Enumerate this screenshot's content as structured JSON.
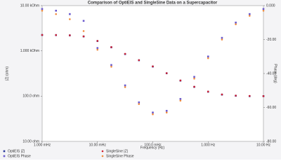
{
  "chart_data": {
    "type": "scatter",
    "title": "Comparison of OptiEIS and SingleSine Data on a Supercapacitor",
    "xlabel": "Frequency (Hz)",
    "ylabel": "|Z| (ohm)",
    "y2label": "Phase (deg)",
    "xscale": "log",
    "yscale": "log",
    "x": [
      0.001,
      0.00178,
      0.00316,
      0.00562,
      0.01,
      0.0178,
      0.0316,
      0.0562,
      0.1,
      0.178,
      0.316,
      0.562,
      1,
      1.78,
      3.16,
      5.62,
      10
    ],
    "xlim": [
      0.001,
      10
    ],
    "xticks": [
      {
        "value": 0.001,
        "label": "1.000 mHz"
      },
      {
        "value": 0.01,
        "label": "10.00 mHz"
      },
      {
        "value": 0.1,
        "label": "100.0 mHz"
      },
      {
        "value": 1,
        "label": "1.000 Hz"
      },
      {
        "value": 10,
        "label": "10.00 Hz"
      }
    ],
    "ylim": [
      10,
      10000
    ],
    "yticks": [
      {
        "value": 10000,
        "label": "10.00 kOhm"
      },
      {
        "value": 1000,
        "label": "1.000 kOhm"
      },
      {
        "value": 100,
        "label": "100.0 ohm"
      },
      {
        "value": 10,
        "label": "10.00 ohm"
      }
    ],
    "y2lim": [
      -80,
      0
    ],
    "y2ticks": [
      {
        "value": 0,
        "label": "0.000"
      },
      {
        "value": -20,
        "label": "-20.00"
      },
      {
        "value": -40,
        "label": "-40.00"
      },
      {
        "value": -60,
        "label": "-60.00"
      },
      {
        "value": -80,
        "label": "-80.00"
      }
    ],
    "legend": "bottom",
    "series": [
      {
        "name": "OptiEIS |Z|",
        "color": "#2a3a9c",
        "marker": "square",
        "values": [
          2240,
          2230,
          2200,
          2080,
          1650,
          1200,
          850,
          620,
          450,
          320,
          220,
          160,
          125,
          108,
          102,
          100,
          100
        ]
      },
      {
        "name": "OptiEIS Phase",
        "color": "#6a5acd",
        "marker": "square",
        "axis": "y2",
        "values": [
          -2,
          -3,
          -5,
          -9,
          -25,
          -35,
          -47,
          -57,
          -63,
          -62,
          -55,
          -42,
          -30,
          -19,
          -10,
          -5,
          -2
        ]
      },
      {
        "name": "SingleSine |Z|",
        "color": "#d02030",
        "marker": "circle",
        "values": [
          2250,
          2240,
          2210,
          2090,
          1660,
          1210,
          860,
          625,
          455,
          322,
          222,
          161,
          126,
          109,
          103,
          101,
          100
        ]
      },
      {
        "name": "SingleSine Phase",
        "color": "#f08a3c",
        "marker": "circle",
        "axis": "y2",
        "values": [
          -3,
          -5,
          -8,
          -15,
          -26,
          -36,
          -48,
          -58,
          -64,
          -63,
          -56,
          -43,
          -31,
          -20,
          -11,
          -6,
          -3
        ]
      }
    ]
  }
}
